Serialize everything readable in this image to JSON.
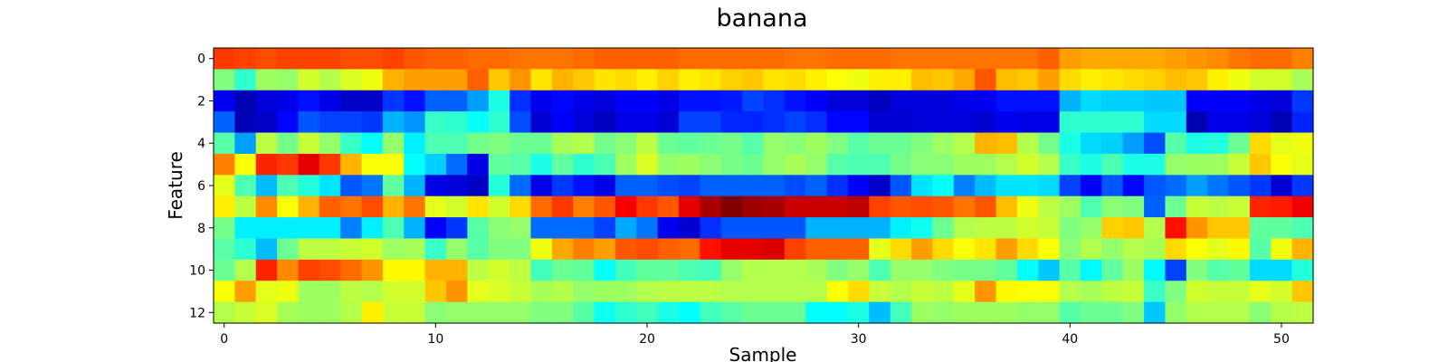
{
  "chart_data": {
    "type": "heatmap",
    "title": "banana",
    "xlabel": "Sample",
    "ylabel": "Feature",
    "colormap": "jet",
    "vmin": 0,
    "vmax": 1,
    "n_cols": 52,
    "n_rows": 13,
    "x_ticks": [
      0,
      10,
      20,
      30,
      40,
      50
    ],
    "y_ticks": [
      0,
      2,
      4,
      6,
      8,
      10,
      12
    ],
    "grid": false,
    "legend": "none",
    "rows": [
      [
        0.82,
        0.81,
        0.8,
        0.81,
        0.81,
        0.81,
        0.8,
        0.8,
        0.81,
        0.79,
        0.78,
        0.78,
        0.77,
        0.77,
        0.76,
        0.76,
        0.76,
        0.77,
        0.78,
        0.78,
        0.78,
        0.78,
        0.77,
        0.77,
        0.77,
        0.77,
        0.77,
        0.76,
        0.76,
        0.77,
        0.77,
        0.77,
        0.76,
        0.76,
        0.76,
        0.76,
        0.76,
        0.76,
        0.76,
        0.78,
        0.72,
        0.71,
        0.71,
        0.71,
        0.71,
        0.72,
        0.73,
        0.74,
        0.76,
        0.77,
        0.77,
        0.75
      ],
      [
        0.5,
        0.42,
        0.53,
        0.52,
        0.58,
        0.55,
        0.59,
        0.61,
        0.7,
        0.72,
        0.72,
        0.72,
        0.78,
        0.68,
        0.73,
        0.65,
        0.7,
        0.68,
        0.65,
        0.66,
        0.64,
        0.67,
        0.64,
        0.65,
        0.67,
        0.68,
        0.65,
        0.66,
        0.64,
        0.62,
        0.61,
        0.64,
        0.64,
        0.69,
        0.68,
        0.71,
        0.79,
        0.69,
        0.68,
        0.72,
        0.66,
        0.64,
        0.65,
        0.66,
        0.67,
        0.69,
        0.68,
        0.64,
        0.61,
        0.58,
        0.58,
        0.54
      ],
      [
        0.11,
        0.05,
        0.09,
        0.1,
        0.14,
        0.1,
        0.07,
        0.07,
        0.18,
        0.14,
        0.22,
        0.22,
        0.28,
        0.4,
        0.17,
        0.11,
        0.13,
        0.1,
        0.09,
        0.12,
        0.12,
        0.1,
        0.14,
        0.14,
        0.15,
        0.19,
        0.17,
        0.14,
        0.12,
        0.09,
        0.09,
        0.06,
        0.09,
        0.09,
        0.09,
        0.1,
        0.11,
        0.14,
        0.14,
        0.14,
        0.3,
        0.34,
        0.33,
        0.33,
        0.32,
        0.32,
        0.12,
        0.12,
        0.12,
        0.1,
        0.09,
        0.18
      ],
      [
        0.22,
        0.05,
        0.07,
        0.13,
        0.21,
        0.19,
        0.19,
        0.18,
        0.3,
        0.27,
        0.43,
        0.42,
        0.38,
        0.42,
        0.2,
        0.08,
        0.12,
        0.09,
        0.06,
        0.1,
        0.1,
        0.08,
        0.19,
        0.19,
        0.16,
        0.16,
        0.17,
        0.19,
        0.17,
        0.13,
        0.13,
        0.08,
        0.08,
        0.09,
        0.09,
        0.09,
        0.08,
        0.11,
        0.1,
        0.1,
        0.42,
        0.42,
        0.42,
        0.42,
        0.34,
        0.34,
        0.05,
        0.1,
        0.1,
        0.09,
        0.05,
        0.16
      ],
      [
        0.46,
        0.28,
        0.56,
        0.49,
        0.57,
        0.52,
        0.43,
        0.38,
        0.52,
        0.36,
        0.45,
        0.45,
        0.49,
        0.5,
        0.48,
        0.48,
        0.54,
        0.55,
        0.49,
        0.51,
        0.56,
        0.48,
        0.47,
        0.48,
        0.49,
        0.46,
        0.52,
        0.51,
        0.53,
        0.5,
        0.46,
        0.48,
        0.48,
        0.5,
        0.53,
        0.55,
        0.7,
        0.69,
        0.55,
        0.49,
        0.4,
        0.34,
        0.33,
        0.28,
        0.2,
        0.46,
        0.4,
        0.41,
        0.48,
        0.66,
        0.6,
        0.61
      ],
      [
        0.75,
        0.62,
        0.84,
        0.82,
        0.9,
        0.82,
        0.7,
        0.62,
        0.62,
        0.38,
        0.33,
        0.23,
        0.1,
        0.47,
        0.46,
        0.4,
        0.47,
        0.42,
        0.45,
        0.53,
        0.59,
        0.52,
        0.53,
        0.51,
        0.49,
        0.48,
        0.52,
        0.54,
        0.52,
        0.46,
        0.45,
        0.45,
        0.49,
        0.51,
        0.51,
        0.53,
        0.53,
        0.55,
        0.58,
        0.55,
        0.43,
        0.4,
        0.45,
        0.4,
        0.4,
        0.52,
        0.53,
        0.53,
        0.57,
        0.68,
        0.62,
        0.6
      ],
      [
        0.6,
        0.45,
        0.31,
        0.45,
        0.41,
        0.35,
        0.21,
        0.24,
        0.47,
        0.3,
        0.1,
        0.09,
        0.07,
        0.41,
        0.23,
        0.1,
        0.18,
        0.14,
        0.1,
        0.22,
        0.22,
        0.2,
        0.19,
        0.22,
        0.22,
        0.22,
        0.22,
        0.2,
        0.22,
        0.17,
        0.12,
        0.07,
        0.21,
        0.35,
        0.38,
        0.25,
        0.31,
        0.35,
        0.35,
        0.34,
        0.19,
        0.12,
        0.21,
        0.13,
        0.21,
        0.23,
        0.28,
        0.24,
        0.21,
        0.18,
        0.08,
        0.18
      ],
      [
        0.64,
        0.56,
        0.74,
        0.62,
        0.7,
        0.78,
        0.76,
        0.8,
        0.7,
        0.76,
        0.6,
        0.58,
        0.65,
        0.58,
        0.66,
        0.77,
        0.82,
        0.75,
        0.79,
        0.88,
        0.82,
        0.79,
        0.9,
        0.96,
        1.0,
        0.97,
        0.96,
        0.93,
        0.93,
        0.93,
        0.94,
        0.81,
        0.79,
        0.8,
        0.79,
        0.76,
        0.79,
        0.69,
        0.61,
        0.56,
        0.53,
        0.45,
        0.51,
        0.5,
        0.22,
        0.48,
        0.57,
        0.56,
        0.57,
        0.84,
        0.85,
        0.89
      ],
      [
        0.49,
        0.36,
        0.36,
        0.36,
        0.36,
        0.36,
        0.25,
        0.36,
        0.45,
        0.3,
        0.12,
        0.18,
        0.46,
        0.51,
        0.52,
        0.23,
        0.23,
        0.23,
        0.19,
        0.29,
        0.24,
        0.11,
        0.08,
        0.17,
        0.21,
        0.21,
        0.21,
        0.21,
        0.3,
        0.3,
        0.3,
        0.3,
        0.36,
        0.39,
        0.48,
        0.55,
        0.56,
        0.56,
        0.58,
        0.57,
        0.5,
        0.52,
        0.67,
        0.68,
        0.55,
        0.86,
        0.73,
        0.68,
        0.68,
        0.47,
        0.47,
        0.45
      ],
      [
        0.46,
        0.42,
        0.31,
        0.48,
        0.56,
        0.56,
        0.57,
        0.58,
        0.53,
        0.54,
        0.43,
        0.52,
        0.46,
        0.5,
        0.5,
        0.61,
        0.71,
        0.75,
        0.72,
        0.79,
        0.8,
        0.78,
        0.77,
        0.86,
        0.9,
        0.9,
        0.91,
        0.81,
        0.78,
        0.78,
        0.78,
        0.6,
        0.66,
        0.72,
        0.66,
        0.62,
        0.65,
        0.72,
        0.66,
        0.62,
        0.51,
        0.55,
        0.52,
        0.55,
        0.54,
        0.66,
        0.62,
        0.6,
        0.63,
        0.46,
        0.61,
        0.7
      ],
      [
        0.48,
        0.55,
        0.84,
        0.74,
        0.81,
        0.8,
        0.77,
        0.73,
        0.63,
        0.63,
        0.7,
        0.7,
        0.56,
        0.58,
        0.56,
        0.44,
        0.48,
        0.47,
        0.38,
        0.44,
        0.47,
        0.47,
        0.45,
        0.44,
        0.52,
        0.55,
        0.55,
        0.55,
        0.54,
        0.5,
        0.52,
        0.45,
        0.52,
        0.52,
        0.5,
        0.49,
        0.49,
        0.47,
        0.38,
        0.32,
        0.46,
        0.37,
        0.47,
        0.53,
        0.37,
        0.19,
        0.5,
        0.46,
        0.47,
        0.34,
        0.34,
        0.41
      ],
      [
        0.62,
        0.72,
        0.6,
        0.61,
        0.53,
        0.53,
        0.56,
        0.55,
        0.58,
        0.58,
        0.68,
        0.73,
        0.6,
        0.59,
        0.57,
        0.54,
        0.55,
        0.52,
        0.53,
        0.53,
        0.55,
        0.56,
        0.56,
        0.56,
        0.55,
        0.55,
        0.55,
        0.55,
        0.55,
        0.62,
        0.66,
        0.57,
        0.55,
        0.57,
        0.56,
        0.6,
        0.73,
        0.63,
        0.62,
        0.62,
        0.55,
        0.54,
        0.56,
        0.57,
        0.43,
        0.5,
        0.58,
        0.57,
        0.57,
        0.6,
        0.58,
        0.68
      ],
      [
        0.55,
        0.57,
        0.59,
        0.54,
        0.53,
        0.53,
        0.55,
        0.64,
        0.57,
        0.57,
        0.51,
        0.52,
        0.52,
        0.52,
        0.52,
        0.5,
        0.5,
        0.46,
        0.39,
        0.42,
        0.44,
        0.4,
        0.38,
        0.44,
        0.46,
        0.48,
        0.48,
        0.48,
        0.38,
        0.38,
        0.4,
        0.31,
        0.44,
        0.53,
        0.52,
        0.53,
        0.53,
        0.53,
        0.52,
        0.52,
        0.46,
        0.48,
        0.48,
        0.5,
        0.32,
        0.52,
        0.55,
        0.55,
        0.55,
        0.51,
        0.55,
        0.56
      ]
    ]
  }
}
